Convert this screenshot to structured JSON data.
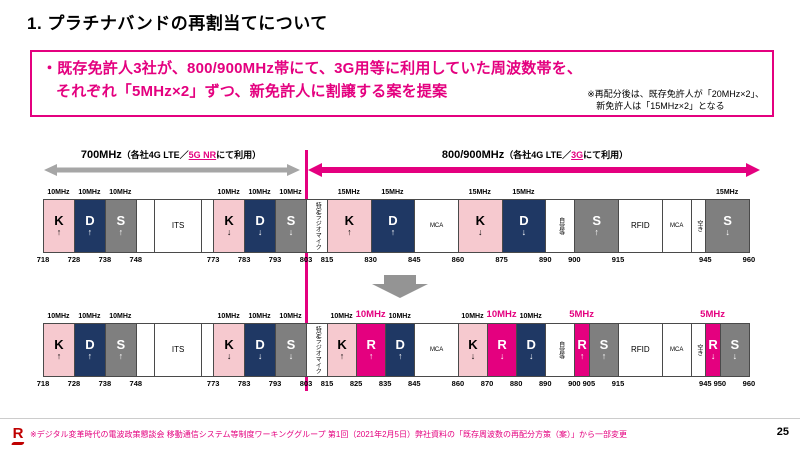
{
  "slide": {
    "title": "1. プラチナバンドの再割当てについて",
    "page_number": "25",
    "footer_source": "※デジタル変革時代の電波政策懇談会 移動通信システム等制度ワーキンググループ 第1回（2021年2月5日）弊社資料の「既存周波数の再配分方策（案）」から一部変更",
    "logo_letter": "R"
  },
  "proposal": {
    "line1": "・既存免許人3社が、800/900MHz帯にて、3G用等に利用していた周波数帯を、",
    "line2": "それぞれ「5MHz×2」ずつ、新免許人に割譲する案を提案",
    "note_line1": "※再配分後は、既存免許人が「20MHz×2」、",
    "note_line2": "新免許人は「15MHz×2」となる"
  },
  "band_headers": {
    "left": {
      "title": "700MHz",
      "sub_pre": "（各社4G LTE／",
      "sub_hl": "5G NR",
      "sub_post": "にて利用）"
    },
    "right": {
      "title": "800/900MHz",
      "sub_pre": "（各社4G LTE／",
      "sub_hl": "3G",
      "sub_post": "にて利用）"
    }
  },
  "colors": {
    "accent_magenta": "#E4007F",
    "navy_block": "#1F3864",
    "gray_block": "#7F7F7F",
    "pink_block": "#F6C9CF",
    "arrow_gray": "#A6A6A6",
    "logo_crimson": "#BF0000"
  },
  "top_band": {
    "width_labels": [
      {
        "text": "10MHz",
        "from": 718,
        "to": 728
      },
      {
        "text": "10MHz",
        "from": 728,
        "to": 738
      },
      {
        "text": "10MHz",
        "from": 738,
        "to": 748
      },
      {
        "text": "10MHz",
        "from": 773,
        "to": 783
      },
      {
        "text": "10MHz",
        "from": 783,
        "to": 793
      },
      {
        "text": "10MHz",
        "from": 793,
        "to": 803
      },
      {
        "text": "15MHz",
        "from": 815,
        "to": 830
      },
      {
        "text": "15MHz",
        "from": 830,
        "to": 845
      },
      {
        "text": "15MHz",
        "from": 860,
        "to": 875
      },
      {
        "text": "15MHz",
        "from": 875,
        "to": 890
      },
      {
        "text": "15MHz",
        "from": 945,
        "to": 960
      }
    ],
    "blocks": [
      {
        "from": 718,
        "to": 728,
        "label": "K",
        "arrow": "↑",
        "type": "k"
      },
      {
        "from": 728,
        "to": 738,
        "label": "D",
        "arrow": "↑",
        "type": "d"
      },
      {
        "from": 738,
        "to": 748,
        "label": "S",
        "arrow": "↑",
        "type": "s"
      },
      {
        "from": 748,
        "to": 754,
        "label": "",
        "arrow": "",
        "type": "empty"
      },
      {
        "from": 754,
        "to": 769,
        "label": "ITS",
        "arrow": "",
        "type": "plain"
      },
      {
        "from": 769,
        "to": 773,
        "label": "",
        "arrow": "",
        "type": "empty"
      },
      {
        "from": 773,
        "to": 783,
        "label": "K",
        "arrow": "↓",
        "type": "k"
      },
      {
        "from": 783,
        "to": 793,
        "label": "D",
        "arrow": "↓",
        "type": "d"
      },
      {
        "from": 793,
        "to": 803,
        "label": "S",
        "arrow": "↓",
        "type": "s"
      },
      {
        "from": 803,
        "to": 815,
        "label": "特定ラジオマイク",
        "arrow": "",
        "type": "vert"
      },
      {
        "from": 815,
        "to": 830,
        "label": "K",
        "arrow": "↑",
        "type": "k"
      },
      {
        "from": 830,
        "to": 845,
        "label": "D",
        "arrow": "↑",
        "type": "d"
      },
      {
        "from": 845,
        "to": 860,
        "label": "MCA",
        "arrow": "",
        "type": "tiny"
      },
      {
        "from": 860,
        "to": 875,
        "label": "K",
        "arrow": "↓",
        "type": "k"
      },
      {
        "from": 875,
        "to": 890,
        "label": "D",
        "arrow": "↓",
        "type": "d"
      },
      {
        "from": 890,
        "to": 900,
        "label": "自営等",
        "arrow": "",
        "type": "vert"
      },
      {
        "from": 900,
        "to": 915,
        "label": "S",
        "arrow": "↑",
        "type": "s"
      },
      {
        "from": 915,
        "to": 930,
        "label": "RFID",
        "arrow": "",
        "type": "plain"
      },
      {
        "from": 930,
        "to": 940,
        "label": "MCA",
        "arrow": "",
        "type": "tiny"
      },
      {
        "from": 940,
        "to": 945,
        "label": "空き",
        "arrow": "",
        "type": "vert"
      },
      {
        "from": 945,
        "to": 960,
        "label": "S",
        "arrow": "↓",
        "type": "s"
      }
    ],
    "freq_labels": [
      718,
      728,
      738,
      748,
      773,
      783,
      793,
      803,
      815,
      830,
      845,
      860,
      875,
      890,
      900,
      915,
      945,
      960
    ]
  },
  "bottom_band": {
    "width_labels": [
      {
        "text": "10MHz",
        "from": 718,
        "to": 728
      },
      {
        "text": "10MHz",
        "from": 728,
        "to": 738
      },
      {
        "text": "10MHz",
        "from": 738,
        "to": 748
      },
      {
        "text": "10MHz",
        "from": 773,
        "to": 783
      },
      {
        "text": "10MHz",
        "from": 783,
        "to": 793
      },
      {
        "text": "10MHz",
        "from": 793,
        "to": 803
      },
      {
        "text": "10MHz",
        "from": 815,
        "to": 825
      },
      {
        "text": "10MHz",
        "from": 825,
        "to": 835,
        "highlight": true
      },
      {
        "text": "10MHz",
        "from": 835,
        "to": 845
      },
      {
        "text": "10MHz",
        "from": 860,
        "to": 870
      },
      {
        "text": "10MHz",
        "from": 870,
        "to": 880,
        "highlight": true
      },
      {
        "text": "10MHz",
        "from": 880,
        "to": 890
      },
      {
        "text": "5MHz",
        "from": 900,
        "to": 905,
        "highlight": true
      },
      {
        "text": "5MHz",
        "from": 945,
        "to": 950,
        "highlight": true
      }
    ],
    "blocks": [
      {
        "from": 718,
        "to": 728,
        "label": "K",
        "arrow": "↑",
        "type": "k"
      },
      {
        "from": 728,
        "to": 738,
        "label": "D",
        "arrow": "↑",
        "type": "d"
      },
      {
        "from": 738,
        "to": 748,
        "label": "S",
        "arrow": "↑",
        "type": "s"
      },
      {
        "from": 748,
        "to": 754,
        "label": "",
        "arrow": "",
        "type": "empty"
      },
      {
        "from": 754,
        "to": 769,
        "label": "ITS",
        "arrow": "",
        "type": "plain"
      },
      {
        "from": 769,
        "to": 773,
        "label": "",
        "arrow": "",
        "type": "empty"
      },
      {
        "from": 773,
        "to": 783,
        "label": "K",
        "arrow": "↓",
        "type": "k"
      },
      {
        "from": 783,
        "to": 793,
        "label": "D",
        "arrow": "↓",
        "type": "d"
      },
      {
        "from": 793,
        "to": 803,
        "label": "S",
        "arrow": "↓",
        "type": "s"
      },
      {
        "from": 803,
        "to": 815,
        "label": "特定ラジオマイク",
        "arrow": "",
        "type": "vert"
      },
      {
        "from": 815,
        "to": 825,
        "label": "K",
        "arrow": "↑",
        "type": "k"
      },
      {
        "from": 825,
        "to": 835,
        "label": "R",
        "arrow": "↑",
        "type": "r"
      },
      {
        "from": 835,
        "to": 845,
        "label": "D",
        "arrow": "↑",
        "type": "d"
      },
      {
        "from": 845,
        "to": 860,
        "label": "MCA",
        "arrow": "",
        "type": "tiny"
      },
      {
        "from": 860,
        "to": 870,
        "label": "K",
        "arrow": "↓",
        "type": "k"
      },
      {
        "from": 870,
        "to": 880,
        "label": "R",
        "arrow": "↓",
        "type": "r"
      },
      {
        "from": 880,
        "to": 890,
        "label": "D",
        "arrow": "↓",
        "type": "d"
      },
      {
        "from": 890,
        "to": 900,
        "label": "自営等",
        "arrow": "",
        "type": "vert"
      },
      {
        "from": 900,
        "to": 905,
        "label": "R",
        "arrow": "↑",
        "type": "r"
      },
      {
        "from": 905,
        "to": 915,
        "label": "S",
        "arrow": "↑",
        "type": "s"
      },
      {
        "from": 915,
        "to": 930,
        "label": "RFID",
        "arrow": "",
        "type": "plain"
      },
      {
        "from": 930,
        "to": 940,
        "label": "MCA",
        "arrow": "",
        "type": "tiny"
      },
      {
        "from": 940,
        "to": 945,
        "label": "空き",
        "arrow": "",
        "type": "vert"
      },
      {
        "from": 945,
        "to": 950,
        "label": "R",
        "arrow": "↓",
        "type": "r"
      },
      {
        "from": 950,
        "to": 960,
        "label": "S",
        "arrow": "↓",
        "type": "s"
      }
    ],
    "freq_labels": [
      718,
      728,
      738,
      748,
      773,
      783,
      793,
      803,
      815,
      825,
      835,
      845,
      860,
      870,
      880,
      890,
      900,
      905,
      915,
      945,
      950,
      960
    ]
  }
}
